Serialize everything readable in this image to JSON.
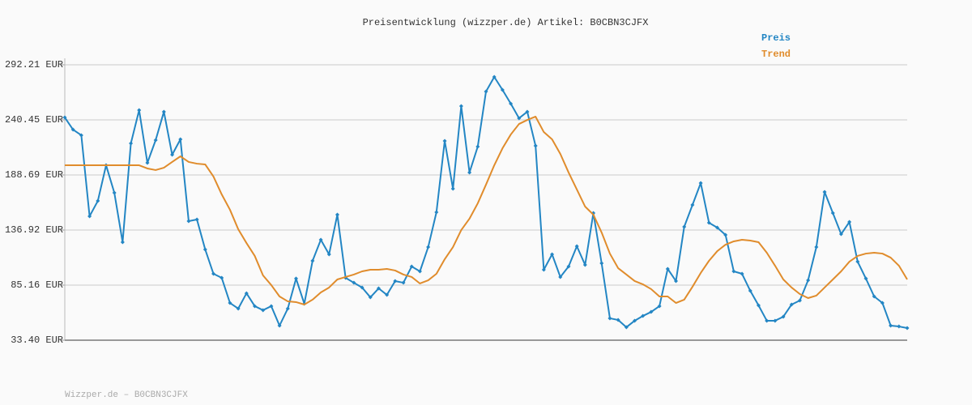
{
  "chart_data": {
    "type": "line",
    "title": "Preisentwicklung (wizzper.de) Artikel: B0CBN3CJFX",
    "footer": "Wizzper.de – B0CBN3CJFX",
    "legend": "top-right",
    "grid": true,
    "ylim": [
      33.4,
      292.21
    ],
    "yticks": [
      {
        "value": 33.4,
        "label": "33.40 EUR"
      },
      {
        "value": 85.16,
        "label": "85.16 EUR"
      },
      {
        "value": 136.92,
        "label": "136.92 EUR"
      },
      {
        "value": 188.69,
        "label": "188.69 EUR"
      },
      {
        "value": 240.45,
        "label": "240.45 EUR"
      },
      {
        "value": 292.21,
        "label": "292.21 EUR"
      }
    ],
    "categories": [
      null,
      null,
      null,
      null,
      null,
      null,
      null,
      null,
      null,
      null,
      null,
      null,
      null,
      null,
      null,
      null,
      null,
      null,
      null,
      null,
      null,
      null,
      null,
      null,
      null,
      null,
      null,
      null,
      null,
      null,
      null,
      null,
      null,
      null,
      null,
      null,
      null,
      null,
      null,
      null,
      null,
      null,
      null,
      null,
      null,
      null,
      null,
      null,
      null,
      null,
      null,
      null,
      null,
      null,
      null,
      null,
      null,
      null,
      null,
      null,
      null,
      null,
      null,
      null,
      null,
      null,
      null,
      null,
      null,
      null,
      null,
      null,
      null,
      null,
      null,
      null,
      null,
      null,
      null,
      null,
      null,
      null,
      null,
      null,
      null,
      null,
      null,
      null,
      null,
      null,
      null,
      null,
      null,
      null,
      null,
      null,
      null,
      null,
      null,
      null,
      null,
      null,
      null
    ],
    "series": [
      {
        "name": "Preis",
        "color": "#2386c4",
        "markers": true,
        "values": [
          242.7,
          231.3,
          226.0,
          149.9,
          164.3,
          197.8,
          171.9,
          125.5,
          218.4,
          249.6,
          200.1,
          221.4,
          248.1,
          207.7,
          222.2,
          145.3,
          146.8,
          118.7,
          95.8,
          92.0,
          68.4,
          63.1,
          77.5,
          65.4,
          61.6,
          65.4,
          47.1,
          63.1,
          91.3,
          67.7,
          108.0,
          127.8,
          114.1,
          151.4,
          92.0,
          87.4,
          82.9,
          73.7,
          82.1,
          76.0,
          89.0,
          87.4,
          102.7,
          98.1,
          120.9,
          153.7,
          220.7,
          175.7,
          253.4,
          191.0,
          215.3,
          267.1,
          280.8,
          268.6,
          255.7,
          242.0,
          248.1,
          216.1,
          99.6,
          114.1,
          92.8,
          102.7,
          121.7,
          104.2,
          152.9,
          105.7,
          54.0,
          52.4,
          45.6,
          51.7,
          56.2,
          60.0,
          65.4,
          100.4,
          89.0,
          140.0,
          160.5,
          181.1,
          143.8,
          139.2,
          132.4,
          98.1,
          95.8,
          79.8,
          66.1,
          51.7,
          51.7,
          55.5,
          66.9,
          70.7,
          89.7,
          120.9,
          172.7,
          152.9,
          133.1,
          144.5,
          107.2,
          91.3,
          74.5,
          68.4,
          47.1,
          46.3,
          44.8
        ]
      },
      {
        "name": "Trend",
        "color": "#e08c2c",
        "markers": false,
        "values": [
          197.8,
          197.8,
          197.8,
          197.8,
          197.8,
          197.8,
          197.8,
          197.8,
          197.8,
          197.8,
          194.8,
          193.3,
          195.5,
          200.9,
          206.2,
          200.9,
          199.3,
          198.6,
          187.2,
          170.4,
          156.0,
          137.7,
          124.7,
          112.6,
          94.3,
          85.2,
          74.5,
          69.9,
          69.2,
          66.9,
          71.5,
          78.3,
          82.9,
          90.5,
          92.8,
          95.1,
          98.1,
          99.6,
          99.6,
          100.4,
          98.9,
          95.1,
          92.8,
          86.7,
          89.7,
          95.8,
          109.5,
          120.9,
          136.9,
          147.6,
          162.0,
          179.6,
          197.8,
          213.8,
          226.7,
          236.6,
          240.4,
          243.5,
          229.0,
          222.2,
          208.5,
          191.0,
          175.0,
          159.0,
          151.4,
          134.6,
          114.8,
          101.1,
          95.1,
          89.0,
          85.9,
          81.4,
          74.5,
          74.5,
          68.4,
          71.5,
          83.6,
          96.6,
          108.0,
          117.1,
          123.2,
          126.3,
          127.8,
          127.0,
          125.5,
          115.6,
          103.4,
          90.5,
          82.9,
          76.8,
          73.0,
          75.3,
          82.9,
          90.5,
          98.1,
          107.2,
          112.6,
          114.8,
          115.6,
          114.8,
          111.0,
          103.4,
          90.5
        ]
      }
    ]
  }
}
